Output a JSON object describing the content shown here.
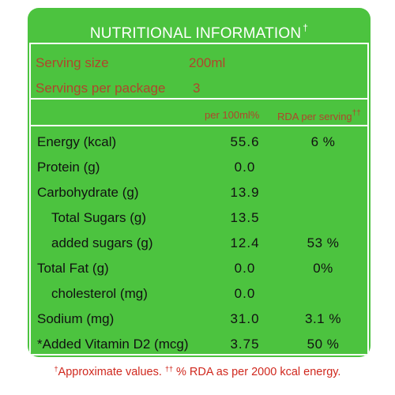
{
  "title": "NUTRITIONAL INFORMATION",
  "title_mark": "†",
  "serving": {
    "size_label": "Serving size",
    "size_value": "200ml",
    "per_package_label": "Servings per package",
    "per_package_value": "3"
  },
  "columns": {
    "per100": "per 100ml%",
    "rda": "RDA per serving",
    "rda_mark": "††"
  },
  "rows": [
    {
      "label": "Energy (kcal)",
      "per100": "55.6",
      "rda": "6 %"
    },
    {
      "label": "Protein (g)",
      "per100": "0.0",
      "rda": ""
    },
    {
      "label": "Carbohydrate (g)",
      "per100": "13.9",
      "rda": ""
    },
    {
      "label": "Total Sugars (g)",
      "per100": "13.5",
      "rda": ""
    },
    {
      "label": "added sugars (g)",
      "per100": "12.4",
      "rda": "53 %"
    },
    {
      "label": "Total Fat (g)",
      "per100": "0.0",
      "rda": "0%"
    },
    {
      "label": "cholesterol (mg)",
      "per100": "0.0",
      "rda": ""
    },
    {
      "label": "Sodium (mg)",
      "per100": "31.0",
      "rda": "3.1 %"
    },
    {
      "label": "*Added Vitamin D2 (mcg)",
      "per100": "3.75",
      "rda": "50 %"
    }
  ],
  "footnote": {
    "mark1": "†",
    "text1": "Approximate values.",
    "mark2": "††",
    "text2": "% RDA as per 2000 kcal energy."
  },
  "colors": {
    "panel": "#4cc33f",
    "label_red": "#b1452c",
    "footnote_red": "#d0281e"
  }
}
